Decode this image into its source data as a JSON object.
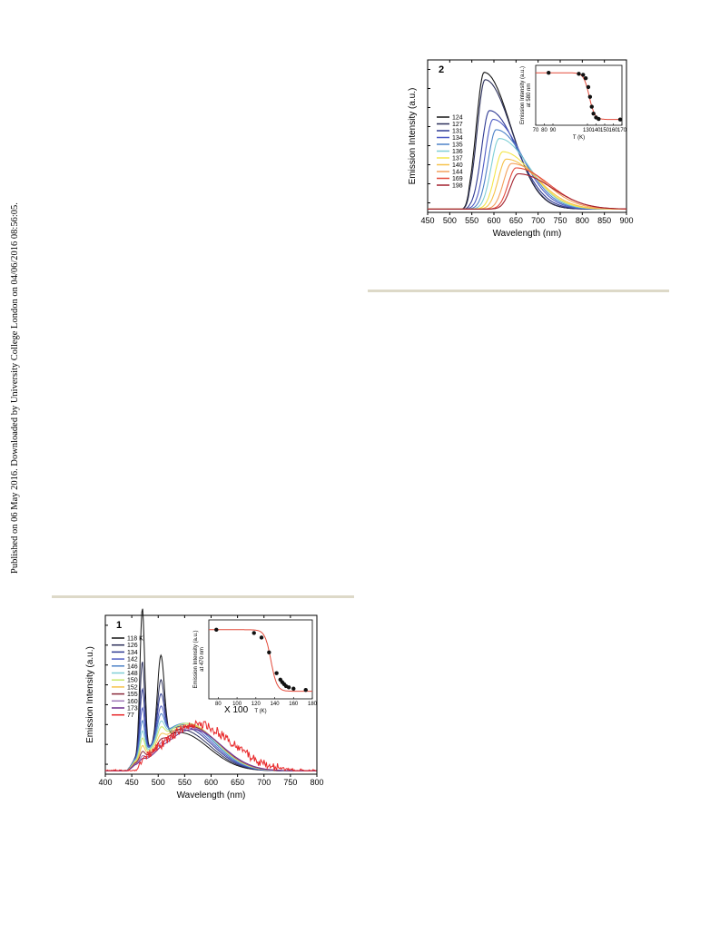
{
  "sidebar": {
    "published_text": "Published on 06 May 2016. Downloaded by University College London on 04/06/2016 08:56:05."
  },
  "chart_data": [
    {
      "panel": "2",
      "type": "line",
      "xlabel": "Wavelength (nm)",
      "ylabel": "Emission Intensity (a.u.)",
      "xlim": [
        450,
        900
      ],
      "xticks": [
        450,
        500,
        550,
        600,
        650,
        700,
        750,
        800,
        850,
        900
      ],
      "legend_position": "left",
      "series": [
        {
          "name": "124",
          "color": "#141414",
          "peak_nm": 578,
          "peak_height": 0.93
        },
        {
          "name": "127",
          "color": "#2b2f5a",
          "peak_nm": 580,
          "peak_height": 0.88
        },
        {
          "name": "131",
          "color": "#2f3a93",
          "peak_nm": 590,
          "peak_height": 0.67
        },
        {
          "name": "134",
          "color": "#4e5cc4",
          "peak_nm": 598,
          "peak_height": 0.61
        },
        {
          "name": "135",
          "color": "#4d82c8",
          "peak_nm": 605,
          "peak_height": 0.54
        },
        {
          "name": "136",
          "color": "#7fcfd6",
          "peak_nm": 612,
          "peak_height": 0.48
        },
        {
          "name": "137",
          "color": "#f3e64a",
          "peak_nm": 620,
          "peak_height": 0.39
        },
        {
          "name": "140",
          "color": "#f6c24b",
          "peak_nm": 628,
          "peak_height": 0.34
        },
        {
          "name": "144",
          "color": "#f3a05c",
          "peak_nm": 640,
          "peak_height": 0.31
        },
        {
          "name": "169",
          "color": "#e3493b",
          "peak_nm": 650,
          "peak_height": 0.28
        },
        {
          "name": "198",
          "color": "#a3212d",
          "peak_nm": 655,
          "peak_height": 0.24
        }
      ],
      "inset": {
        "xlabel": "T (K)",
        "ylabel_line1": "Emission Intensity (a.u.)",
        "ylabel_line2": "at 580 nm",
        "xticks": [
          70,
          80,
          90,
          130,
          140,
          150,
          160,
          170
        ],
        "points": [
          [
            85,
            0.97
          ],
          [
            120,
            0.95
          ],
          [
            125,
            0.93
          ],
          [
            128,
            0.86
          ],
          [
            131,
            0.68
          ],
          [
            133,
            0.48
          ],
          [
            135,
            0.28
          ],
          [
            137,
            0.14
          ],
          [
            140,
            0.06
          ],
          [
            143,
            0.03
          ],
          [
            168,
            0.02
          ]
        ],
        "fit_color": "#e34a3a"
      }
    },
    {
      "panel": "1",
      "type": "line",
      "xlabel": "Wavelength (nm)",
      "ylabel": "Emission Intensity (a.u.)",
      "xlim": [
        400,
        800
      ],
      "xticks": [
        400,
        450,
        500,
        550,
        600,
        650,
        700,
        750,
        800
      ],
      "annotation": "X 100",
      "legend_position": "left",
      "series": [
        {
          "name": "118 K",
          "color": "#141414",
          "p1": 0.95,
          "p2": 0.55,
          "broad": 0.25
        },
        {
          "name": "126",
          "color": "#2b2f5a",
          "p1": 0.6,
          "p2": 0.38,
          "broad": 0.27
        },
        {
          "name": "134",
          "color": "#2f3a93",
          "p1": 0.42,
          "p2": 0.28,
          "broad": 0.29
        },
        {
          "name": "142",
          "color": "#4e5cc4",
          "p1": 0.3,
          "p2": 0.2,
          "broad": 0.3
        },
        {
          "name": "146",
          "color": "#4d82c8",
          "p1": 0.22,
          "p2": 0.15,
          "broad": 0.31
        },
        {
          "name": "148",
          "color": "#7fcfd6",
          "p1": 0.16,
          "p2": 0.11,
          "broad": 0.31
        },
        {
          "name": "150",
          "color": "#c8e86a",
          "p1": 0.12,
          "p2": 0.08,
          "broad": 0.31
        },
        {
          "name": "152",
          "color": "#f6c24b",
          "p1": 0.08,
          "p2": 0.05,
          "broad": 0.3
        },
        {
          "name": "155",
          "color": "#8a2a3a",
          "p1": 0.05,
          "p2": 0.03,
          "broad": 0.29
        },
        {
          "name": "160",
          "color": "#a079b8",
          "p1": 0.03,
          "p2": 0.02,
          "broad": 0.28
        },
        {
          "name": "173",
          "color": "#6a2a8a",
          "p1": 0.02,
          "p2": 0.01,
          "broad": 0.27
        },
        {
          "name": "77",
          "color": "#e8282a",
          "p1": 0.0,
          "p2": 0.0,
          "broad": 0.3
        }
      ],
      "inset": {
        "xlabel": "T (K)",
        "ylabel_line1": "Emission Intensity (a.u.)",
        "ylabel_line2": "at 470 nm",
        "xticks": [
          80,
          100,
          120,
          140,
          160,
          180
        ],
        "points": [
          [
            78,
            0.97
          ],
          [
            118,
            0.92
          ],
          [
            126,
            0.85
          ],
          [
            134,
            0.62
          ],
          [
            142,
            0.3
          ],
          [
            146,
            0.2
          ],
          [
            148,
            0.16
          ],
          [
            150,
            0.13
          ],
          [
            152,
            0.1
          ],
          [
            155,
            0.08
          ],
          [
            160,
            0.06
          ],
          [
            173,
            0.04
          ]
        ],
        "fit_color": "#e34a3a"
      }
    }
  ]
}
